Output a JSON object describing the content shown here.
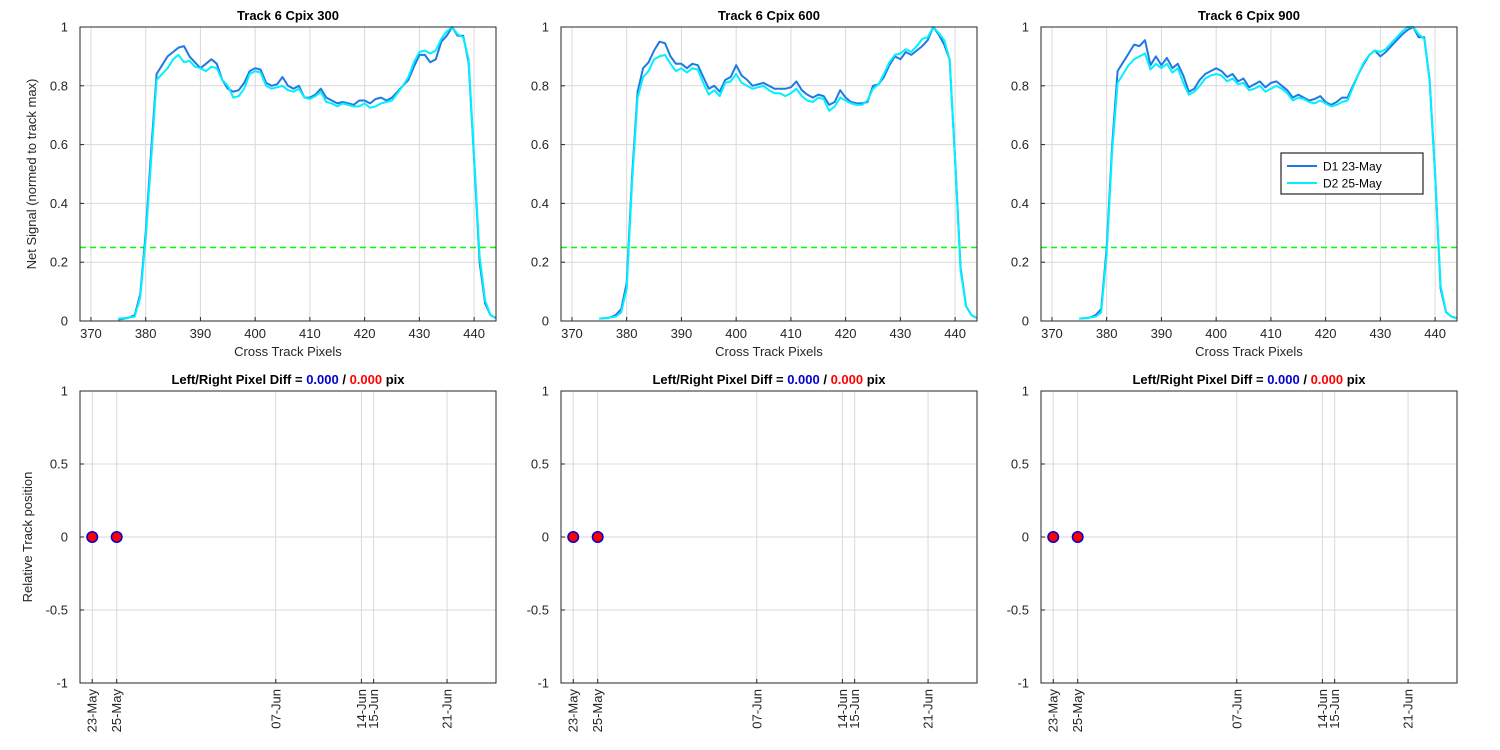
{
  "figure": {
    "top_ylabel": "Net Signal (normed to track max)",
    "bottom_ylabel": "Relative Track position",
    "top_xlabel": "Cross Track Pixels",
    "diff_prefix": "Left/Right Pixel Diff = ",
    "diff_sep": " / ",
    "diff_suffix": " pix",
    "colors": {
      "d1": "#1f78e6",
      "d2": "#00f0ff",
      "threshold": "#00ff00",
      "left": "#0000cc",
      "right": "#ff0000",
      "grid": "#d9d9d9"
    }
  },
  "legend": [
    {
      "label": "D1 23-May"
    },
    {
      "label": "D2 25-May"
    }
  ],
  "chart_data": [
    {
      "type": "line",
      "panel": "signal",
      "title": "Track 6  Cpix 300",
      "xlabel": "Cross Track Pixels",
      "ylabel": "Net Signal (normed to track max)",
      "xlim": [
        368,
        444
      ],
      "ylim": [
        0,
        1
      ],
      "xticks": [
        370,
        380,
        390,
        400,
        410,
        420,
        430,
        440
      ],
      "yticks": [
        0,
        0.2,
        0.4,
        0.6,
        0.8,
        1
      ],
      "threshold": 0.25,
      "x": [
        375,
        376,
        377,
        378,
        379,
        380,
        381,
        382,
        383,
        384,
        385,
        386,
        387,
        388,
        389,
        390,
        391,
        392,
        393,
        394,
        395,
        396,
        397,
        398,
        399,
        400,
        401,
        402,
        403,
        404,
        405,
        406,
        407,
        408,
        409,
        410,
        411,
        412,
        413,
        414,
        415,
        416,
        417,
        418,
        419,
        420,
        421,
        422,
        423,
        424,
        425,
        426,
        427,
        428,
        429,
        430,
        431,
        432,
        433,
        434,
        435,
        436,
        437,
        438,
        439,
        440,
        441,
        442,
        443,
        444
      ],
      "series": [
        {
          "name": "D1 23-May",
          "values": [
            0.005,
            0.008,
            0.012,
            0.02,
            0.09,
            0.3,
            0.58,
            0.84,
            0.87,
            0.9,
            0.915,
            0.93,
            0.935,
            0.9,
            0.88,
            0.86,
            0.875,
            0.89,
            0.875,
            0.82,
            0.79,
            0.78,
            0.785,
            0.81,
            0.85,
            0.86,
            0.855,
            0.81,
            0.8,
            0.805,
            0.83,
            0.8,
            0.79,
            0.8,
            0.76,
            0.76,
            0.77,
            0.79,
            0.76,
            0.75,
            0.74,
            0.745,
            0.74,
            0.735,
            0.75,
            0.75,
            0.74,
            0.755,
            0.76,
            0.75,
            0.76,
            0.78,
            0.8,
            0.82,
            0.865,
            0.905,
            0.905,
            0.88,
            0.89,
            0.95,
            0.97,
            1.0,
            0.97,
            0.97,
            0.88,
            0.55,
            0.2,
            0.06,
            0.02,
            0.01
          ]
        },
        {
          "name": "D2 25-May",
          "values": [
            0.008,
            0.01,
            0.012,
            0.015,
            0.08,
            0.28,
            0.55,
            0.82,
            0.84,
            0.86,
            0.89,
            0.905,
            0.88,
            0.885,
            0.865,
            0.86,
            0.85,
            0.865,
            0.86,
            0.82,
            0.8,
            0.76,
            0.765,
            0.79,
            0.84,
            0.85,
            0.845,
            0.8,
            0.79,
            0.795,
            0.8,
            0.785,
            0.78,
            0.79,
            0.76,
            0.755,
            0.765,
            0.78,
            0.745,
            0.74,
            0.73,
            0.74,
            0.735,
            0.73,
            0.73,
            0.74,
            0.725,
            0.73,
            0.74,
            0.745,
            0.75,
            0.775,
            0.8,
            0.83,
            0.88,
            0.915,
            0.92,
            0.91,
            0.92,
            0.96,
            0.985,
            1.0,
            0.975,
            0.965,
            0.89,
            0.56,
            0.22,
            0.07,
            0.02,
            0.01
          ]
        }
      ]
    },
    {
      "type": "line",
      "panel": "signal",
      "title": "Track 6  Cpix 600",
      "xlabel": "Cross Track Pixels",
      "ylabel": "",
      "xlim": [
        368,
        444
      ],
      "ylim": [
        0,
        1
      ],
      "xticks": [
        370,
        380,
        390,
        400,
        410,
        420,
        430,
        440
      ],
      "yticks": [
        0,
        0.2,
        0.4,
        0.6,
        0.8,
        1
      ],
      "threshold": 0.25,
      "x": [
        375,
        376,
        377,
        378,
        379,
        380,
        381,
        382,
        383,
        384,
        385,
        386,
        387,
        388,
        389,
        390,
        391,
        392,
        393,
        394,
        395,
        396,
        397,
        398,
        399,
        400,
        401,
        402,
        403,
        404,
        405,
        406,
        407,
        408,
        409,
        410,
        411,
        412,
        413,
        414,
        415,
        416,
        417,
        418,
        419,
        420,
        421,
        422,
        423,
        424,
        425,
        426,
        427,
        428,
        429,
        430,
        431,
        432,
        433,
        434,
        435,
        436,
        437,
        438,
        439,
        440,
        441,
        442,
        443,
        444
      ],
      "series": [
        {
          "name": "D1 23-May",
          "values": [
            0.008,
            0.01,
            0.012,
            0.02,
            0.04,
            0.13,
            0.5,
            0.78,
            0.86,
            0.88,
            0.92,
            0.95,
            0.945,
            0.9,
            0.875,
            0.875,
            0.86,
            0.875,
            0.87,
            0.83,
            0.79,
            0.8,
            0.78,
            0.82,
            0.83,
            0.87,
            0.835,
            0.82,
            0.8,
            0.805,
            0.81,
            0.8,
            0.79,
            0.79,
            0.79,
            0.795,
            0.815,
            0.785,
            0.77,
            0.76,
            0.77,
            0.765,
            0.735,
            0.745,
            0.785,
            0.76,
            0.745,
            0.74,
            0.74,
            0.745,
            0.8,
            0.805,
            0.83,
            0.87,
            0.9,
            0.89,
            0.915,
            0.905,
            0.92,
            0.935,
            0.955,
            1.0,
            0.975,
            0.94,
            0.89,
            0.55,
            0.18,
            0.05,
            0.02,
            0.01
          ]
        },
        {
          "name": "D2 25-May",
          "values": [
            0.008,
            0.01,
            0.012,
            0.015,
            0.03,
            0.11,
            0.48,
            0.76,
            0.83,
            0.85,
            0.89,
            0.9,
            0.905,
            0.875,
            0.85,
            0.86,
            0.845,
            0.86,
            0.855,
            0.81,
            0.77,
            0.785,
            0.765,
            0.81,
            0.815,
            0.84,
            0.81,
            0.8,
            0.79,
            0.795,
            0.8,
            0.785,
            0.775,
            0.775,
            0.765,
            0.775,
            0.79,
            0.765,
            0.75,
            0.745,
            0.76,
            0.755,
            0.715,
            0.73,
            0.76,
            0.75,
            0.74,
            0.735,
            0.735,
            0.75,
            0.79,
            0.805,
            0.84,
            0.88,
            0.905,
            0.91,
            0.925,
            0.915,
            0.935,
            0.96,
            0.965,
            1.0,
            0.98,
            0.955,
            0.89,
            0.55,
            0.17,
            0.05,
            0.02,
            0.01
          ]
        }
      ]
    },
    {
      "type": "line",
      "panel": "signal",
      "title": "Track 6  Cpix 900",
      "xlabel": "Cross Track Pixels",
      "ylabel": "",
      "xlim": [
        368,
        444
      ],
      "ylim": [
        0,
        1
      ],
      "xticks": [
        370,
        380,
        390,
        400,
        410,
        420,
        430,
        440
      ],
      "yticks": [
        0,
        0.2,
        0.4,
        0.6,
        0.8,
        1
      ],
      "threshold": 0.25,
      "legend": "right-middle",
      "x": [
        375,
        376,
        377,
        378,
        379,
        380,
        381,
        382,
        383,
        384,
        385,
        386,
        387,
        388,
        389,
        390,
        391,
        392,
        393,
        394,
        395,
        396,
        397,
        398,
        399,
        400,
        401,
        402,
        403,
        404,
        405,
        406,
        407,
        408,
        409,
        410,
        411,
        412,
        413,
        414,
        415,
        416,
        417,
        418,
        419,
        420,
        421,
        422,
        423,
        424,
        425,
        426,
        427,
        428,
        429,
        430,
        431,
        432,
        433,
        434,
        435,
        436,
        437,
        438,
        439,
        440,
        441,
        442,
        443,
        444
      ],
      "series": [
        {
          "name": "D1 23-May",
          "values": [
            0.008,
            0.01,
            0.012,
            0.02,
            0.04,
            0.25,
            0.6,
            0.85,
            0.88,
            0.91,
            0.94,
            0.935,
            0.955,
            0.87,
            0.9,
            0.87,
            0.895,
            0.86,
            0.875,
            0.835,
            0.78,
            0.79,
            0.82,
            0.84,
            0.85,
            0.86,
            0.85,
            0.83,
            0.84,
            0.815,
            0.825,
            0.795,
            0.805,
            0.815,
            0.795,
            0.81,
            0.815,
            0.8,
            0.785,
            0.76,
            0.77,
            0.76,
            0.75,
            0.755,
            0.765,
            0.745,
            0.735,
            0.745,
            0.76,
            0.76,
            0.8,
            0.84,
            0.875,
            0.905,
            0.92,
            0.9,
            0.915,
            0.935,
            0.955,
            0.975,
            0.99,
            1.0,
            0.965,
            0.965,
            0.82,
            0.5,
            0.11,
            0.03,
            0.015,
            0.01
          ]
        },
        {
          "name": "D2 25-May",
          "values": [
            0.008,
            0.01,
            0.012,
            0.015,
            0.03,
            0.23,
            0.58,
            0.81,
            0.84,
            0.87,
            0.89,
            0.9,
            0.91,
            0.855,
            0.875,
            0.86,
            0.875,
            0.845,
            0.86,
            0.81,
            0.77,
            0.78,
            0.8,
            0.825,
            0.835,
            0.84,
            0.835,
            0.815,
            0.825,
            0.805,
            0.81,
            0.785,
            0.79,
            0.8,
            0.78,
            0.79,
            0.8,
            0.79,
            0.775,
            0.75,
            0.76,
            0.755,
            0.745,
            0.74,
            0.75,
            0.74,
            0.73,
            0.735,
            0.745,
            0.75,
            0.795,
            0.84,
            0.88,
            0.905,
            0.92,
            0.915,
            0.925,
            0.945,
            0.965,
            0.985,
            1.0,
            1.0,
            0.975,
            0.96,
            0.82,
            0.5,
            0.12,
            0.03,
            0.015,
            0.01
          ]
        }
      ]
    },
    {
      "type": "scatter",
      "panel": "position",
      "title_values": {
        "left": "0.000",
        "right": "0.000"
      },
      "ylabel": "Relative Track position",
      "xlim": [
        "2015-05-22",
        "2015-06-25"
      ],
      "ylim": [
        -1,
        1
      ],
      "yticks": [
        -1,
        -0.5,
        0,
        0.5,
        1
      ],
      "xticks": [
        {
          "date": "2015-05-23",
          "label": "23-May"
        },
        {
          "date": "2015-05-25",
          "label": "25-May"
        },
        {
          "date": "2015-06-07",
          "label": "07-Jun"
        },
        {
          "date": "2015-06-14",
          "label": "14-Jun"
        },
        {
          "date": "2015-06-15",
          "label": "15-Jun"
        },
        {
          "date": "2015-06-21",
          "label": "21-Jun"
        }
      ],
      "points": [
        {
          "date": "2015-05-23",
          "left": 0,
          "right": 0
        },
        {
          "date": "2015-05-25",
          "left": 0,
          "right": 0
        }
      ]
    },
    {
      "type": "scatter",
      "panel": "position",
      "title_values": {
        "left": "0.000",
        "right": "0.000"
      },
      "ylabel": "",
      "xlim": [
        "2015-05-22",
        "2015-06-25"
      ],
      "ylim": [
        -1,
        1
      ],
      "yticks": [
        -1,
        -0.5,
        0,
        0.5,
        1
      ],
      "xticks": [
        {
          "date": "2015-05-23",
          "label": "23-May"
        },
        {
          "date": "2015-05-25",
          "label": "25-May"
        },
        {
          "date": "2015-06-07",
          "label": "07-Jun"
        },
        {
          "date": "2015-06-14",
          "label": "14-Jun"
        },
        {
          "date": "2015-06-15",
          "label": "15-Jun"
        },
        {
          "date": "2015-06-21",
          "label": "21-Jun"
        }
      ],
      "points": [
        {
          "date": "2015-05-23",
          "left": 0,
          "right": 0
        },
        {
          "date": "2015-05-25",
          "left": 0,
          "right": 0
        }
      ]
    },
    {
      "type": "scatter",
      "panel": "position",
      "title_values": {
        "left": "0.000",
        "right": "0.000"
      },
      "ylabel": "",
      "xlim": [
        "2015-05-22",
        "2015-06-25"
      ],
      "ylim": [
        -1,
        1
      ],
      "yticks": [
        -1,
        -0.5,
        0,
        0.5,
        1
      ],
      "xticks": [
        {
          "date": "2015-05-23",
          "label": "23-May"
        },
        {
          "date": "2015-05-25",
          "label": "25-May"
        },
        {
          "date": "2015-06-07",
          "label": "07-Jun"
        },
        {
          "date": "2015-06-14",
          "label": "14-Jun"
        },
        {
          "date": "2015-06-15",
          "label": "15-Jun"
        },
        {
          "date": "2015-06-21",
          "label": "21-Jun"
        }
      ],
      "points": [
        {
          "date": "2015-05-23",
          "left": 0,
          "right": 0
        },
        {
          "date": "2015-05-25",
          "left": 0,
          "right": 0
        }
      ]
    }
  ]
}
